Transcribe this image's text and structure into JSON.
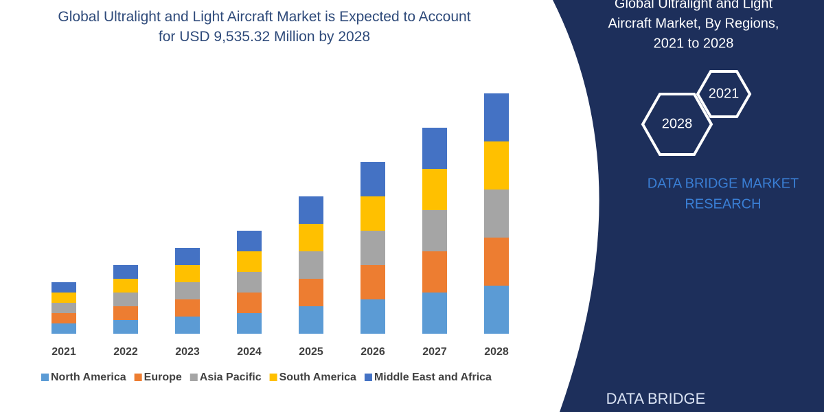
{
  "chart_data": {
    "type": "bar",
    "stacked": true,
    "title": "Global Ultralight and Light Aircraft Market is Expected to Account for USD 9,535.32 Million by 2028",
    "categories": [
      "2021",
      "2022",
      "2023",
      "2024",
      "2025",
      "2026",
      "2027",
      "2028"
    ],
    "series": [
      {
        "name": "North America",
        "color": "#5b9bd5",
        "values": [
          15,
          20,
          25,
          30,
          40,
          50,
          60,
          70
        ]
      },
      {
        "name": "Europe",
        "color": "#ed7d31",
        "values": [
          15,
          20,
          25,
          30,
          40,
          50,
          60,
          70
        ]
      },
      {
        "name": "Asia Pacific",
        "color": "#a5a5a5",
        "values": [
          15,
          20,
          25,
          30,
          40,
          50,
          60,
          70
        ]
      },
      {
        "name": "South America",
        "color": "#ffc000",
        "values": [
          15,
          20,
          25,
          30,
          40,
          50,
          60,
          70
        ]
      },
      {
        "name": "Middle East and Africa",
        "color": "#4472c4",
        "values": [
          15,
          20,
          25,
          30,
          40,
          50,
          60,
          70
        ]
      }
    ],
    "ylim": [
      0,
      400
    ],
    "grid": false,
    "legend": "bottom"
  },
  "side_panel": {
    "title_lines": [
      "Global Ultralight and Light",
      "Aircraft Market, By Regions,",
      "2021 to 2028"
    ],
    "hexagons": [
      "2028",
      "2021"
    ],
    "brand_lines": [
      "DATA BRIDGE MARKET",
      "RESEARCH"
    ],
    "logo": "DATA BRIDGE"
  }
}
